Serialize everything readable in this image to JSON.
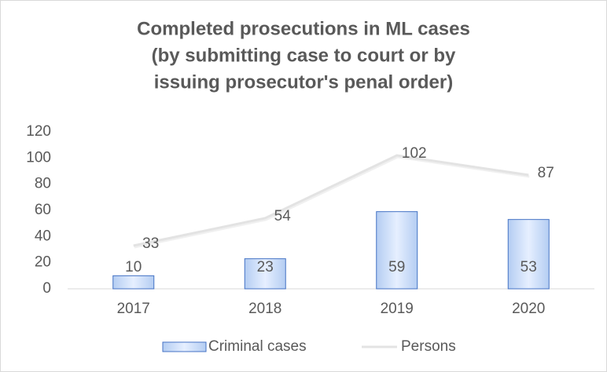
{
  "chart_data": {
    "type": "bar",
    "title": [
      "Completed prosecutions in ML cases",
      "(by submitting case to court or by",
      "issuing prosecutor's penal order)"
    ],
    "categories": [
      "2017",
      "2018",
      "2019",
      "2020"
    ],
    "series": [
      {
        "name": "Criminal cases",
        "type": "bar",
        "color": "#4472c4",
        "values": [
          10,
          23,
          59,
          53
        ]
      },
      {
        "name": "Persons",
        "type": "line",
        "color": "#e3e3e3",
        "values": [
          33,
          54,
          102,
          87
        ]
      }
    ],
    "ylim": [
      0,
      120
    ],
    "yticks": [
      0,
      20,
      40,
      60,
      80,
      100,
      120
    ],
    "grid": false,
    "legend": "bottom"
  }
}
